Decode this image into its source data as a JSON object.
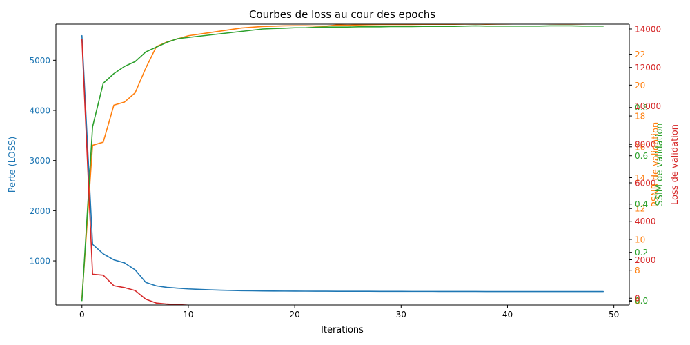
{
  "chart_data": {
    "type": "line",
    "title": "Courbes de loss au cour des epochs",
    "xlabel": "Iterations",
    "xlim": [
      -2.45,
      51.45
    ],
    "xticks": [
      0,
      10,
      20,
      30,
      40,
      50
    ],
    "grid": false,
    "axes": [
      {
        "id": "loss",
        "side": "left",
        "label": "Perte (LOSS)",
        "color": "#1f77b4",
        "ylim": [
          120,
          5720
        ],
        "ticks": [
          1000,
          2000,
          3000,
          4000,
          5000
        ]
      },
      {
        "id": "psnr",
        "side": "right",
        "label": "PSNR de validation",
        "color": "#ff7f0e",
        "ylim": [
          5.75,
          23.95
        ],
        "ticks": [
          6,
          8,
          10,
          12,
          14,
          16,
          18,
          20,
          22
        ]
      },
      {
        "id": "ssim",
        "side": "right",
        "label": "SSIM de validation",
        "color": "#2ca02c",
        "ylim": [
          -0.018,
          1.145
        ],
        "ticks": [
          0.0,
          0.2,
          0.4,
          0.6,
          0.8
        ]
      },
      {
        "id": "valloss",
        "side": "right",
        "label": "Loss de validation",
        "color": "#d62728",
        "ylim": [
          -350,
          14250
        ],
        "ticks": [
          0,
          2000,
          4000,
          6000,
          8000,
          10000,
          12000,
          14000
        ]
      }
    ],
    "x": [
      0,
      1,
      2,
      3,
      4,
      5,
      6,
      7,
      8,
      9,
      10,
      11,
      12,
      13,
      14,
      15,
      16,
      17,
      18,
      19,
      20,
      21,
      22,
      23,
      24,
      25,
      26,
      27,
      28,
      29,
      30,
      31,
      32,
      33,
      34,
      35,
      36,
      37,
      38,
      39,
      40,
      41,
      42,
      43,
      44,
      45,
      46,
      47,
      48,
      49
    ],
    "series": [
      {
        "name": "Perte (LOSS)",
        "axis": "loss",
        "color": "#1f77b4",
        "values": [
          5490,
          1330,
          1140,
          1020,
          960,
          820,
          570,
          500,
          470,
          455,
          440,
          430,
          422,
          415,
          410,
          405,
          402,
          400,
          398,
          397,
          396,
          395,
          394,
          394,
          393,
          393,
          392,
          392,
          391,
          391,
          391,
          390,
          390,
          390,
          389,
          389,
          389,
          389,
          388,
          388,
          388,
          388,
          388,
          387,
          387,
          387,
          387,
          387,
          387,
          387
        ]
      },
      {
        "name": "PSNR de validation",
        "axis": "psnr",
        "color": "#ff7f0e",
        "values": [
          6.2,
          16.1,
          16.3,
          18.7,
          18.9,
          19.5,
          21.1,
          22.5,
          22.8,
          23.0,
          23.2,
          23.3,
          23.4,
          23.5,
          23.6,
          23.7,
          23.75,
          23.8,
          23.82,
          23.84,
          23.85,
          23.85,
          23.83,
          23.83,
          23.9,
          23.88,
          23.9,
          23.92,
          23.93,
          23.93,
          23.93,
          23.93,
          23.94,
          23.94,
          23.94,
          23.94,
          23.95,
          23.96,
          23.94,
          23.95,
          23.96,
          23.97,
          23.97,
          23.97,
          23.96,
          23.95,
          23.95,
          23.96,
          23.97,
          23.98
        ]
      },
      {
        "name": "SSIM de validation",
        "axis": "ssim",
        "color": "#2ca02c",
        "values": [
          0.0,
          0.72,
          0.9,
          0.94,
          0.97,
          0.99,
          1.03,
          1.05,
          1.07,
          1.085,
          1.09,
          1.095,
          1.1,
          1.105,
          1.11,
          1.115,
          1.12,
          1.125,
          1.127,
          1.128,
          1.13,
          1.13,
          1.132,
          1.133,
          1.133,
          1.133,
          1.134,
          1.134,
          1.134,
          1.135,
          1.135,
          1.135,
          1.136,
          1.136,
          1.136,
          1.136,
          1.137,
          1.138,
          1.137,
          1.137,
          1.137,
          1.137,
          1.137,
          1.137,
          1.138,
          1.138,
          1.138,
          1.137,
          1.137,
          1.137
        ]
      },
      {
        "name": "Loss de validation",
        "axis": "valloss",
        "color": "#d62728",
        "values": [
          13450,
          1250,
          1200,
          650,
          550,
          400,
          -50,
          -250,
          -300,
          -330,
          -360,
          -380,
          -390,
          -400,
          -405,
          -410,
          -415,
          -420,
          -425,
          -430,
          -440,
          -420,
          -410,
          -410,
          -430,
          -420,
          -430,
          -430,
          -430,
          -430,
          -430,
          -430,
          -430,
          -440,
          -440,
          -440,
          -410,
          -430,
          -430,
          -440,
          -440,
          -440,
          -440,
          -440,
          -440,
          -430,
          -430,
          -430,
          -430,
          -430
        ]
      }
    ]
  }
}
